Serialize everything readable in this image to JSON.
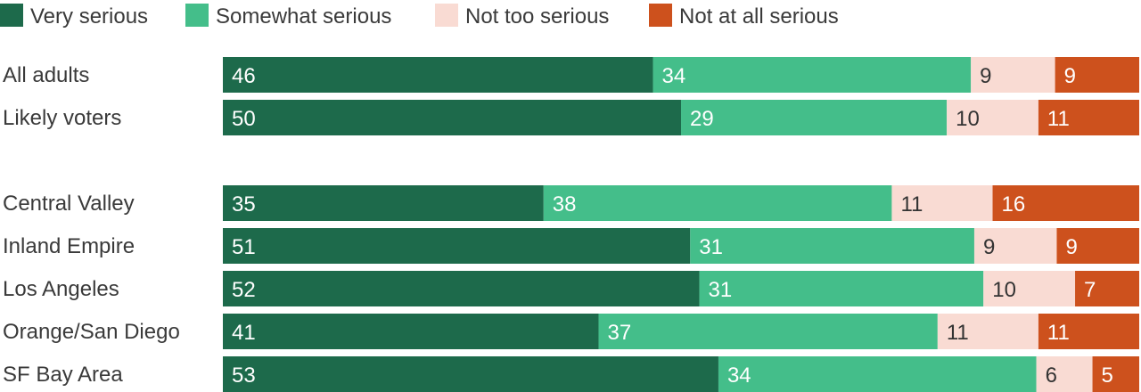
{
  "chart_data": {
    "type": "bar",
    "orientation": "horizontal",
    "stacked": true,
    "xlim": [
      0,
      100
    ],
    "legend": {
      "position": "top-left",
      "items": [
        {
          "label": "Very serious",
          "color": "#1d6a4b"
        },
        {
          "label": "Somewhat serious",
          "color": "#44be8a"
        },
        {
          "label": "Not too serious",
          "color": "#f9dbd3"
        },
        {
          "label": "Not at all serious",
          "color": "#cd511d"
        }
      ]
    },
    "categories": [
      "All adults",
      "Likely voters",
      "Central Valley",
      "Inland Empire",
      "Los Angeles",
      "Orange/San Diego",
      "SF Bay Area"
    ],
    "group_break_after": 1,
    "series": [
      {
        "name": "Very serious",
        "color": "#1d6a4b",
        "label_color": "#ffffff",
        "values": [
          46,
          50,
          35,
          51,
          52,
          41,
          53
        ]
      },
      {
        "name": "Somewhat serious",
        "color": "#44be8a",
        "label_color": "#ffffff",
        "values": [
          34,
          29,
          38,
          31,
          31,
          37,
          34
        ]
      },
      {
        "name": "Not too serious",
        "color": "#f9dbd3",
        "label_color": "#333333",
        "values": [
          9,
          10,
          11,
          9,
          10,
          11,
          6
        ]
      },
      {
        "name": "Not at all serious",
        "color": "#cd511d",
        "label_color": "#ffffff",
        "values": [
          9,
          11,
          16,
          9,
          7,
          11,
          5
        ]
      }
    ]
  }
}
